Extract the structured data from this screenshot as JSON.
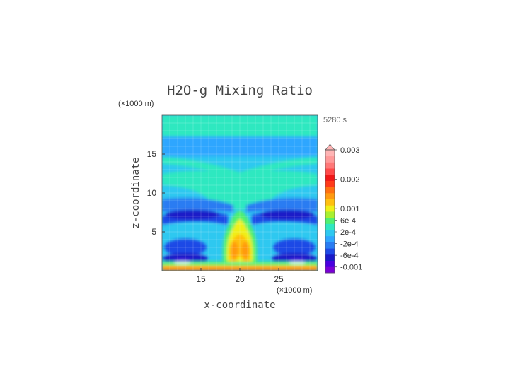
{
  "chart_data": {
    "type": "heatmap",
    "title": "H2O-g Mixing Ratio",
    "time_label": "5280 s",
    "xlabel": "x-coordinate",
    "ylabel": "z-coordinate",
    "x_unit": "(×1000 m)",
    "y_unit": "(×1000 m)",
    "xlim": [
      10,
      30
    ],
    "ylim": [
      0,
      20
    ],
    "x_ticks": [
      15,
      20,
      25
    ],
    "y_ticks": [
      5,
      10,
      15
    ],
    "grid": true,
    "colorbar": {
      "labels": [
        "0.003",
        "0.002",
        "0.001",
        "6e-4",
        "2e-4",
        "-2e-4",
        "-6e-4",
        "-0.001"
      ],
      "label_values": [
        0.003,
        0.002,
        0.001,
        0.0006,
        0.0002,
        -0.0002,
        -0.0006,
        -0.001
      ],
      "min": -0.0012,
      "max": 0.003,
      "extend": "max",
      "colors": [
        "#7a00d6",
        "#4a00e0",
        "#1a1ac8",
        "#1e4ae6",
        "#2a7cf2",
        "#2fa6ff",
        "#2ec8f0",
        "#2fe8c0",
        "#50f070",
        "#a8f030",
        "#f0f018",
        "#ffc010",
        "#ff9a10",
        "#ff7010",
        "#ff3a1a",
        "#f01818",
        "#ff4a4a",
        "#ff7878",
        "#ff9a9a",
        "#ffb4b4"
      ]
    }
  }
}
